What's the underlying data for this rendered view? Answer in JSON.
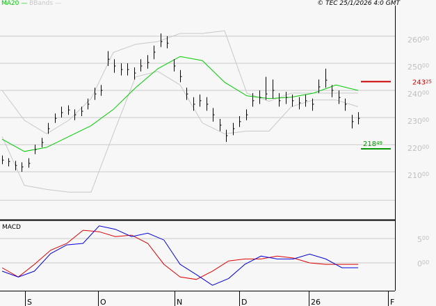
{
  "header": {
    "legend": [
      {
        "label": "MA20",
        "color": "#00cc00"
      },
      {
        "label": "BBands",
        "color": "#c8c8c8"
      }
    ],
    "copyright": "© TEC 25/1/2026 4:0 GMT"
  },
  "chart_data": [
    {
      "type": "candlestick",
      "pane": "price",
      "y_ticks": [
        {
          "value": 2600,
          "main": "260",
          "sup": "00"
        },
        {
          "value": 2500,
          "main": "250",
          "sup": "00"
        },
        {
          "value": 2400,
          "main": "240",
          "sup": "00"
        },
        {
          "value": 2300,
          "main": "230",
          "sup": "00"
        },
        {
          "value": 2200,
          "main": "220",
          "sup": "00"
        },
        {
          "value": 2100,
          "main": "210",
          "sup": "00"
        }
      ],
      "ylim": [
        2010,
        2700
      ],
      "grid": true,
      "x_ticks": [
        "S",
        "O",
        "N",
        "D",
        "26",
        "F"
      ],
      "bars_hlc": [
        [
          2160,
          2128,
          2143
        ],
        [
          2150,
          2120,
          2138
        ],
        [
          2140,
          2105,
          2123
        ],
        [
          2135,
          2100,
          2118
        ],
        [
          2150,
          2115,
          2131
        ],
        [
          2200,
          2165,
          2182
        ],
        [
          2225,
          2190,
          2208
        ],
        [
          2280,
          2240,
          2259
        ],
        [
          2315,
          2280,
          2297
        ],
        [
          2340,
          2300,
          2318
        ],
        [
          2345,
          2310,
          2328
        ],
        [
          2330,
          2290,
          2310
        ],
        [
          2340,
          2305,
          2323
        ],
        [
          2370,
          2330,
          2349
        ],
        [
          2410,
          2365,
          2387
        ],
        [
          2420,
          2380,
          2400
        ],
        [
          2545,
          2490,
          2515
        ],
        [
          2515,
          2465,
          2490
        ],
        [
          2500,
          2455,
          2477
        ],
        [
          2500,
          2455,
          2477
        ],
        [
          2485,
          2440,
          2464
        ],
        [
          2515,
          2470,
          2490
        ],
        [
          2530,
          2480,
          2503
        ],
        [
          2565,
          2515,
          2541
        ],
        [
          2610,
          2560,
          2580
        ],
        [
          2600,
          2555,
          2574
        ],
        [
          2515,
          2470,
          2490
        ],
        [
          2475,
          2430,
          2451
        ],
        [
          2410,
          2365,
          2387
        ],
        [
          2375,
          2325,
          2349
        ],
        [
          2385,
          2340,
          2362
        ],
        [
          2375,
          2325,
          2349
        ],
        [
          2335,
          2285,
          2310
        ],
        [
          2295,
          2250,
          2272
        ],
        [
          2255,
          2210,
          2233
        ],
        [
          2280,
          2235,
          2259
        ],
        [
          2305,
          2265,
          2285
        ],
        [
          2330,
          2290,
          2310
        ],
        [
          2390,
          2340,
          2362
        ],
        [
          2400,
          2350,
          2374
        ],
        [
          2450,
          2365,
          2387
        ],
        [
          2440,
          2370,
          2400
        ],
        [
          2390,
          2340,
          2362
        ],
        [
          2395,
          2350,
          2374
        ],
        [
          2385,
          2340,
          2362
        ],
        [
          2375,
          2330,
          2354
        ],
        [
          2385,
          2340,
          2362
        ],
        [
          2370,
          2325,
          2349
        ],
        [
          2440,
          2390,
          2413
        ],
        [
          2480,
          2410,
          2438
        ],
        [
          2420,
          2375,
          2400
        ],
        [
          2400,
          2350,
          2374
        ],
        [
          2370,
          2325,
          2349
        ],
        [
          2310,
          2260,
          2285
        ],
        [
          2320,
          2275,
          2297
        ]
      ],
      "ma20": [
        2220,
        2175,
        2190,
        2230,
        2270,
        2330,
        2410,
        2480,
        2525,
        2510,
        2430,
        2380,
        2370,
        2375,
        2390,
        2420,
        2400
      ],
      "bband_upper": [
        2400,
        2290,
        2240,
        2290,
        2370,
        2540,
        2570,
        2580,
        2610,
        2610,
        2620,
        2390,
        2360,
        2390,
        2390,
        2390,
        2390
      ],
      "bband_lower": [
        2230,
        2050,
        2035,
        2025,
        2025,
        2240,
        2450,
        2470,
        2420,
        2280,
        2240,
        2250,
        2250,
        2340,
        2365,
        2365,
        2340
      ],
      "levels": [
        {
          "value": 2432.25,
          "main": "243",
          "sup": "25",
          "color": "#cc0000"
        },
        {
          "value": 2184.49,
          "main": "218",
          "sup": "49",
          "color": "#009900"
        }
      ]
    },
    {
      "type": "line",
      "pane": "MACD",
      "title": "MACD",
      "y_ticks": [
        {
          "value": 500,
          "main": "5",
          "sup": "00"
        },
        {
          "value": 0,
          "main": "0",
          "sup": "00"
        }
      ],
      "ylim": [
        -570,
        860
      ],
      "series": [
        {
          "color": "#0000dd",
          "values": [
            -170,
            -290,
            -170,
            190,
            370,
            400,
            760,
            690,
            540,
            610,
            470,
            -30,
            -240,
            -460,
            -320,
            -30,
            140,
            80,
            80,
            180,
            80,
            -100,
            -100
          ]
        },
        {
          "color": "#dd0000",
          "values": [
            -100,
            -290,
            -30,
            260,
            400,
            670,
            640,
            540,
            570,
            400,
            -30,
            -290,
            -340,
            -170,
            40,
            80,
            80,
            140,
            100,
            0,
            -30,
            -30,
            -30
          ]
        }
      ]
    }
  ]
}
